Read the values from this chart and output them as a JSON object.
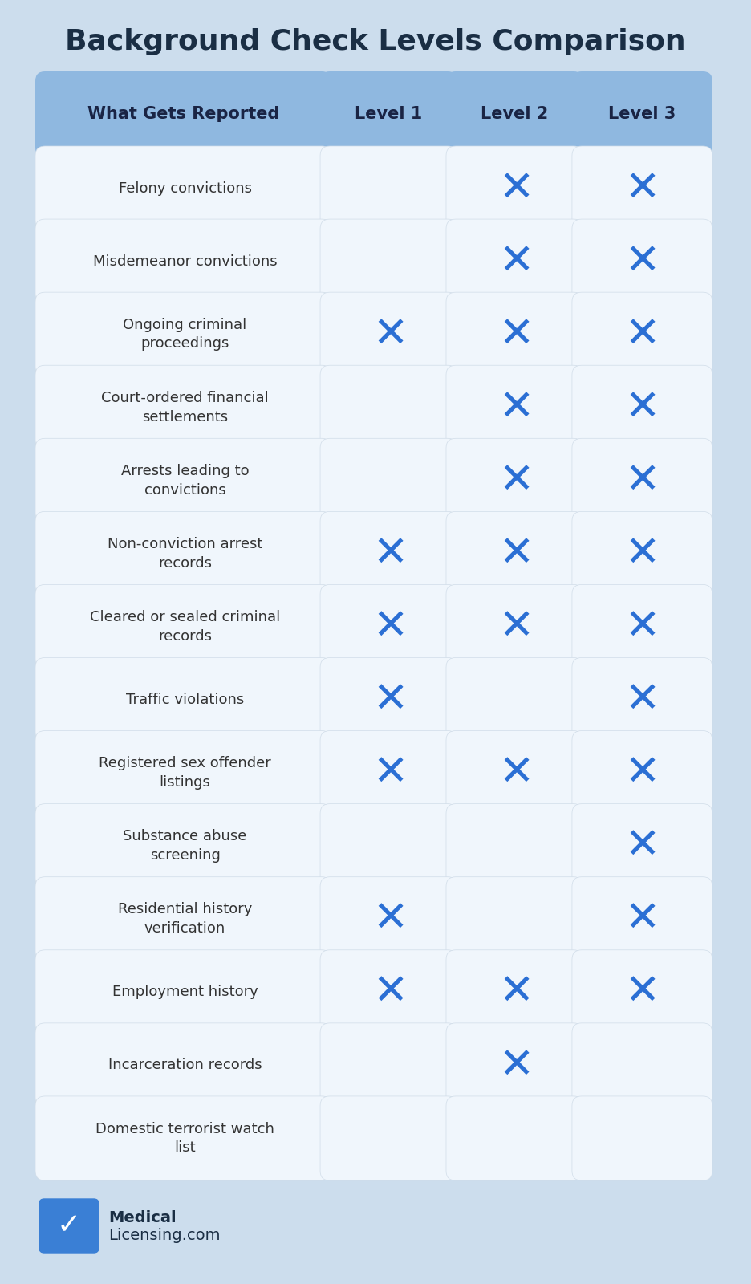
{
  "title": "Background Check Levels Comparison",
  "title_color": "#1a2e44",
  "background_color": "#ccdded",
  "header_bg": "#8fb8e0",
  "cell_bg": "#f0f6fc",
  "header_text_color": "#1a2444",
  "cell_text_color": "#333333",
  "check_color": "#2b6fd4",
  "columns": [
    "What Gets Reported",
    "Level 1",
    "Level 2",
    "Level 3"
  ],
  "rows": [
    {
      "label": "Felony convictions",
      "l1": false,
      "l2": true,
      "l3": true
    },
    {
      "label": "Misdemeanor convictions",
      "l1": false,
      "l2": true,
      "l3": true
    },
    {
      "label": "Ongoing criminal\nproceedings",
      "l1": true,
      "l2": true,
      "l3": true
    },
    {
      "label": "Court-ordered financial\nsettlements",
      "l1": false,
      "l2": true,
      "l3": true
    },
    {
      "label": "Arrests leading to\nconvictions",
      "l1": false,
      "l2": true,
      "l3": true
    },
    {
      "label": "Non-conviction arrest\nrecords",
      "l1": true,
      "l2": true,
      "l3": true
    },
    {
      "label": "Cleared or sealed criminal\nrecords",
      "l1": true,
      "l2": true,
      "l3": true
    },
    {
      "label": "Traffic violations",
      "l1": true,
      "l2": false,
      "l3": true
    },
    {
      "label": "Registered sex offender\nlistings",
      "l1": true,
      "l2": true,
      "l3": true
    },
    {
      "label": "Substance abuse\nscreening",
      "l1": false,
      "l2": false,
      "l3": true
    },
    {
      "label": "Residential history\nverification",
      "l1": true,
      "l2": false,
      "l3": true
    },
    {
      "label": "Employment history",
      "l1": true,
      "l2": true,
      "l3": true
    },
    {
      "label": "Incarceration records",
      "l1": false,
      "l2": true,
      "l3": false
    },
    {
      "label": "Domestic terrorist watch\nlist",
      "l1": false,
      "l2": false,
      "l3": false
    }
  ],
  "logo_text1": "Medical",
  "logo_text2": "Licensing.com",
  "logo_bg": "#3a7fd5"
}
